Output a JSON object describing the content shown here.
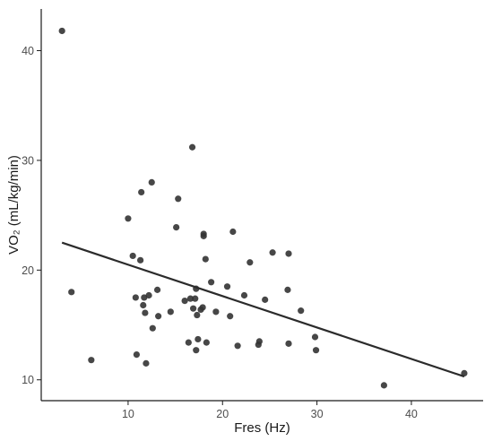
{
  "chart_data": {
    "type": "scatter",
    "title": "",
    "xlabel": "Fres (Hz)",
    "ylabel": "VO₂ (mL/kg/min)",
    "xlim": [
      0.8,
      47.6
    ],
    "ylim": [
      8.1,
      43.8
    ],
    "xticks": [
      10,
      20,
      30,
      40
    ],
    "yticks": [
      10,
      20,
      30,
      40
    ],
    "grid": false,
    "legend": "none",
    "point_color": "#333333",
    "line_color": "#2b2b2b",
    "points": [
      [
        3.0,
        41.8
      ],
      [
        4.0,
        18.0
      ],
      [
        6.1,
        11.8
      ],
      [
        10.0,
        24.7
      ],
      [
        10.5,
        21.3
      ],
      [
        10.8,
        17.5
      ],
      [
        10.9,
        12.3
      ],
      [
        11.3,
        20.9
      ],
      [
        11.4,
        27.1
      ],
      [
        11.6,
        16.8
      ],
      [
        11.7,
        17.5
      ],
      [
        11.8,
        16.1
      ],
      [
        11.9,
        11.5
      ],
      [
        12.2,
        17.7
      ],
      [
        12.5,
        28.0
      ],
      [
        12.6,
        14.7
      ],
      [
        13.1,
        18.2
      ],
      [
        13.2,
        15.8
      ],
      [
        14.5,
        16.2
      ],
      [
        15.1,
        23.9
      ],
      [
        15.3,
        26.5
      ],
      [
        16.0,
        17.2
      ],
      [
        16.4,
        13.4
      ],
      [
        16.6,
        17.4
      ],
      [
        16.8,
        31.2
      ],
      [
        16.9,
        16.5
      ],
      [
        17.1,
        17.4
      ],
      [
        17.2,
        18.3
      ],
      [
        17.2,
        12.7
      ],
      [
        17.3,
        15.9
      ],
      [
        17.4,
        13.7
      ],
      [
        17.7,
        16.4
      ],
      [
        17.9,
        16.6
      ],
      [
        18.0,
        23.3
      ],
      [
        18.0,
        23.1
      ],
      [
        18.2,
        21.0
      ],
      [
        18.3,
        13.4
      ],
      [
        18.8,
        18.9
      ],
      [
        19.3,
        16.2
      ],
      [
        20.5,
        18.5
      ],
      [
        20.8,
        15.8
      ],
      [
        21.1,
        23.5
      ],
      [
        21.6,
        13.1
      ],
      [
        22.3,
        17.7
      ],
      [
        22.9,
        20.7
      ],
      [
        23.8,
        13.2
      ],
      [
        23.9,
        13.5
      ],
      [
        24.5,
        17.3
      ],
      [
        25.3,
        21.6
      ],
      [
        26.9,
        18.2
      ],
      [
        27.0,
        21.5
      ],
      [
        27.0,
        13.3
      ],
      [
        28.3,
        16.3
      ],
      [
        29.8,
        13.9
      ],
      [
        29.9,
        12.7
      ],
      [
        37.1,
        9.5
      ],
      [
        45.6,
        10.6
      ]
    ],
    "fit_line": {
      "x": [
        3.0,
        45.6
      ],
      "y": [
        22.5,
        10.3
      ]
    }
  }
}
